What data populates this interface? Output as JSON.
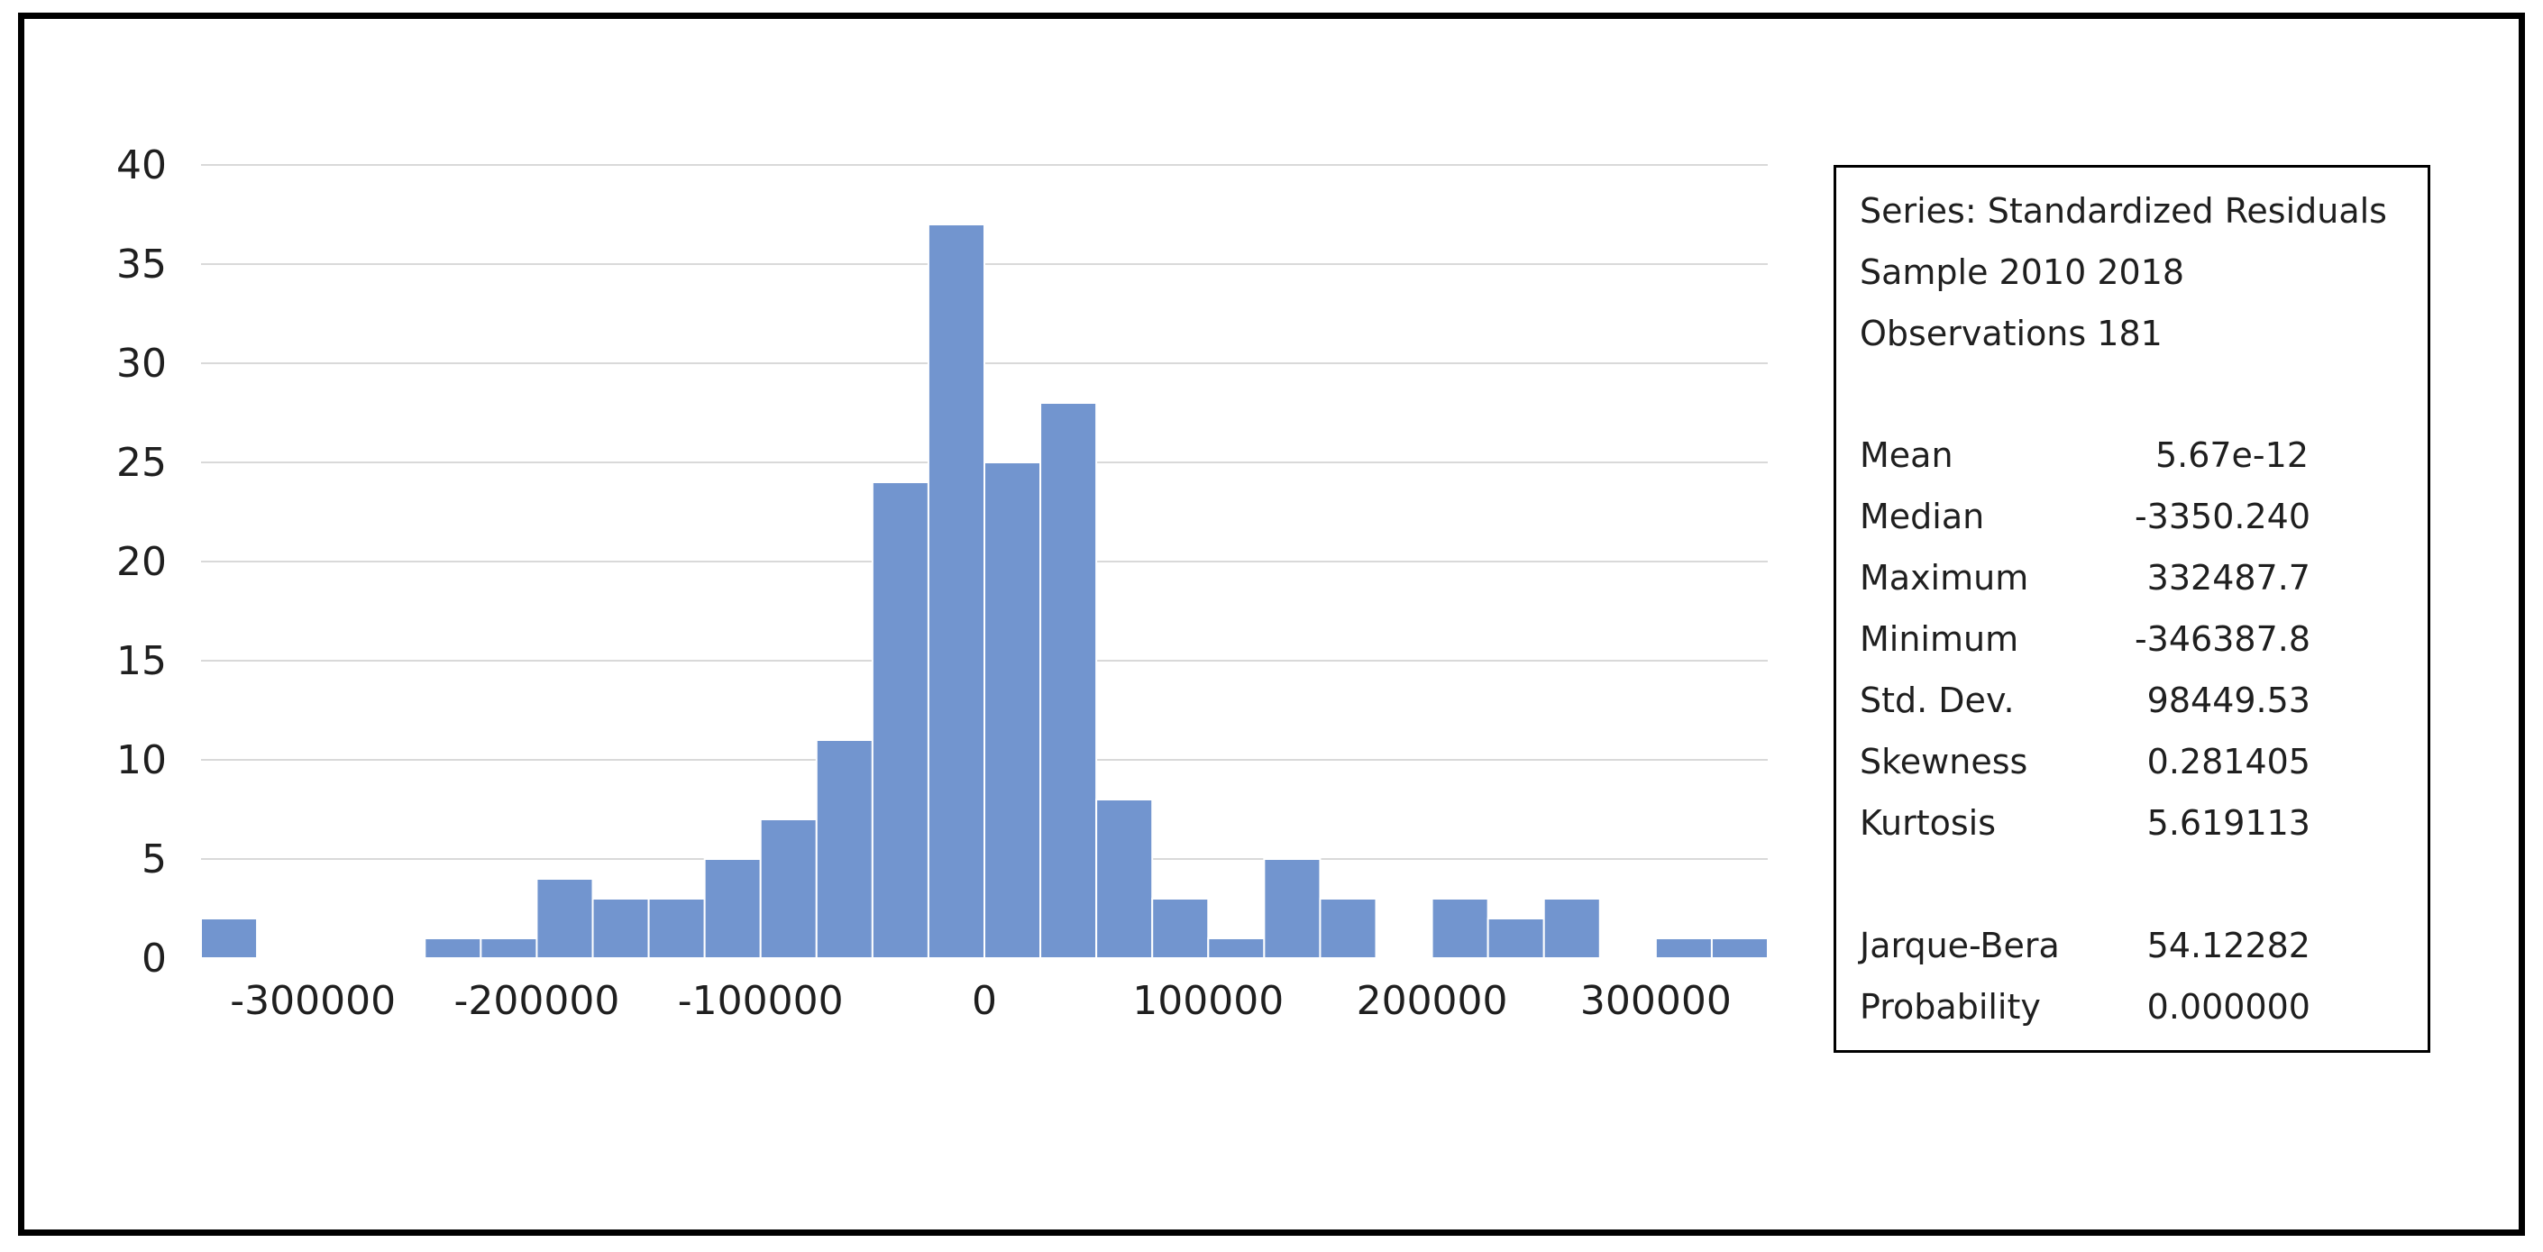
{
  "chart_data": {
    "type": "bar",
    "xlabel": "",
    "ylabel": "",
    "ylim": [
      0,
      40
    ],
    "yticks": [
      0,
      5,
      10,
      15,
      20,
      25,
      30,
      35,
      40
    ],
    "xticks": [
      -300000,
      -200000,
      -100000,
      0,
      100000,
      200000,
      300000
    ],
    "xlim": [
      -350000,
      350000
    ],
    "grid": true,
    "bins": [
      {
        "x0": -350000,
        "x1": -325000,
        "count": 2
      },
      {
        "x0": -325000,
        "x1": -300000,
        "count": 0
      },
      {
        "x0": -300000,
        "x1": -275000,
        "count": 0
      },
      {
        "x0": -275000,
        "x1": -250000,
        "count": 0
      },
      {
        "x0": -250000,
        "x1": -225000,
        "count": 1
      },
      {
        "x0": -225000,
        "x1": -200000,
        "count": 1
      },
      {
        "x0": -200000,
        "x1": -175000,
        "count": 4
      },
      {
        "x0": -175000,
        "x1": -150000,
        "count": 3
      },
      {
        "x0": -150000,
        "x1": -125000,
        "count": 3
      },
      {
        "x0": -125000,
        "x1": -100000,
        "count": 5
      },
      {
        "x0": -100000,
        "x1": -75000,
        "count": 7
      },
      {
        "x0": -75000,
        "x1": -50000,
        "count": 11
      },
      {
        "x0": -50000,
        "x1": -25000,
        "count": 24
      },
      {
        "x0": -25000,
        "x1": 0,
        "count": 37
      },
      {
        "x0": 0,
        "x1": 25000,
        "count": 25
      },
      {
        "x0": 25000,
        "x1": 50000,
        "count": 28
      },
      {
        "x0": 50000,
        "x1": 75000,
        "count": 8
      },
      {
        "x0": 75000,
        "x1": 100000,
        "count": 3
      },
      {
        "x0": 100000,
        "x1": 125000,
        "count": 1
      },
      {
        "x0": 125000,
        "x1": 150000,
        "count": 5
      },
      {
        "x0": 150000,
        "x1": 175000,
        "count": 3
      },
      {
        "x0": 175000,
        "x1": 200000,
        "count": 0
      },
      {
        "x0": 200000,
        "x1": 225000,
        "count": 3
      },
      {
        "x0": 225000,
        "x1": 250000,
        "count": 2
      },
      {
        "x0": 250000,
        "x1": 275000,
        "count": 3
      },
      {
        "x0": 275000,
        "x1": 300000,
        "count": 0
      },
      {
        "x0": 300000,
        "x1": 325000,
        "count": 1
      },
      {
        "x0": 325000,
        "x1": 350000,
        "count": 1
      }
    ],
    "colors": {
      "bar": "#7295cf",
      "bar_edge": "#ffffff",
      "grid": "#d9d9d9"
    }
  },
  "stats": {
    "series_line": "Series: Standardized Residuals",
    "sample_line": "Sample 2010 2018",
    "observations_line": "Observations 181",
    "rows": [
      {
        "label": "Mean",
        "value": "5.67e-12"
      },
      {
        "label": "Median",
        "value": "-3350.240"
      },
      {
        "label": "Maximum",
        "value": "332487.7"
      },
      {
        "label": "Minimum",
        "value": "-346387.8"
      },
      {
        "label": "Std. Dev.",
        "value": "98449.53"
      },
      {
        "label": "Skewness",
        "value": "0.281405"
      },
      {
        "label": "Kurtosis",
        "value": "5.619113"
      }
    ],
    "test_rows": [
      {
        "label": "Jarque-Bera",
        "value": "54.12282"
      },
      {
        "label": "Probability",
        "value": "0.000000"
      }
    ]
  }
}
